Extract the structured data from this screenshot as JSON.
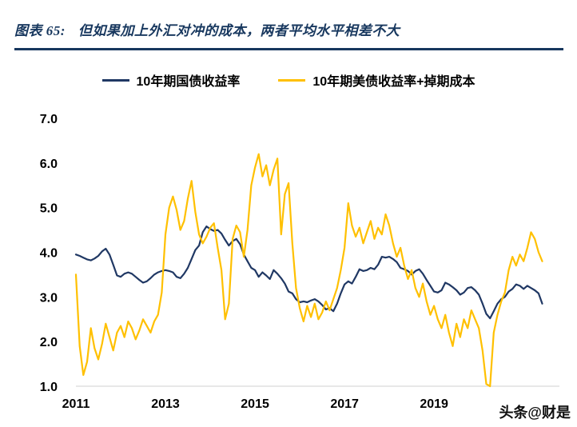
{
  "header": {
    "label": "图表 65:",
    "title": "但如果加上外汇对冲的成本，两者平均水平相差不大",
    "accent_color": "#17375E"
  },
  "watermark": "头条@财是",
  "chart_data": {
    "type": "line",
    "title": "但如果加上外汇对冲的成本，两者平均水平相差不大",
    "xlabel": "",
    "ylabel": "",
    "grid": false,
    "legend_position": "top",
    "x_start_year": 2011,
    "x_step_months": 1,
    "xlim": [
      2011,
      2021.8
    ],
    "ylim": [
      1.0,
      7.0
    ],
    "yticks": [
      {
        "label": "7.0",
        "value": 7.0
      },
      {
        "label": "6.0",
        "value": 6.0
      },
      {
        "label": "5.0",
        "value": 5.0
      },
      {
        "label": "4.0",
        "value": 4.0
      },
      {
        "label": "3.0",
        "value": 3.0
      },
      {
        "label": "2.0",
        "value": 2.0
      },
      {
        "label": "1.0",
        "value": 1.0
      }
    ],
    "xticks": [
      {
        "label": "2011",
        "value": 2011
      },
      {
        "label": "2013",
        "value": 2013
      },
      {
        "label": "2015",
        "value": 2015
      },
      {
        "label": "2017",
        "value": 2017
      },
      {
        "label": "2019",
        "value": 2019
      }
    ],
    "series": [
      {
        "name": "10年期国债收益率",
        "color": "#203864",
        "values": [
          3.95,
          3.92,
          3.88,
          3.84,
          3.82,
          3.86,
          3.92,
          4.02,
          4.08,
          3.95,
          3.72,
          3.48,
          3.45,
          3.52,
          3.55,
          3.52,
          3.45,
          3.38,
          3.32,
          3.35,
          3.42,
          3.5,
          3.55,
          3.58,
          3.6,
          3.58,
          3.55,
          3.45,
          3.42,
          3.52,
          3.65,
          3.85,
          4.05,
          4.15,
          4.45,
          4.58,
          4.52,
          4.48,
          4.5,
          4.42,
          4.28,
          4.15,
          4.25,
          4.3,
          4.18,
          3.95,
          3.8,
          3.65,
          3.6,
          3.45,
          3.55,
          3.48,
          3.4,
          3.6,
          3.52,
          3.42,
          3.3,
          3.12,
          3.08,
          2.95,
          2.88,
          2.9,
          2.88,
          2.92,
          2.95,
          2.9,
          2.82,
          2.72,
          2.75,
          2.68,
          2.85,
          3.08,
          3.28,
          3.35,
          3.3,
          3.45,
          3.62,
          3.58,
          3.6,
          3.65,
          3.62,
          3.72,
          3.9,
          3.88,
          3.9,
          3.85,
          3.78,
          3.65,
          3.62,
          3.58,
          3.5,
          3.58,
          3.62,
          3.52,
          3.38,
          3.25,
          3.12,
          3.1,
          3.15,
          3.32,
          3.28,
          3.22,
          3.15,
          3.05,
          3.1,
          3.2,
          3.22,
          3.15,
          3.05,
          2.85,
          2.62,
          2.52,
          2.68,
          2.85,
          2.95,
          3.0,
          3.12,
          3.18,
          3.28,
          3.25,
          3.18,
          3.25,
          3.2,
          3.15,
          3.08,
          2.85
        ]
      },
      {
        "name": "10年期美债收益率+掉期成本",
        "color": "#FFC000",
        "values": [
          3.5,
          1.9,
          1.25,
          1.55,
          2.3,
          1.85,
          1.6,
          1.95,
          2.4,
          2.1,
          1.8,
          2.2,
          2.35,
          2.1,
          2.45,
          2.3,
          2.05,
          2.25,
          2.5,
          2.35,
          2.2,
          2.45,
          2.6,
          3.1,
          4.4,
          5.0,
          5.25,
          4.95,
          4.5,
          4.7,
          5.2,
          5.6,
          4.9,
          4.4,
          4.2,
          4.35,
          4.55,
          4.65,
          4.1,
          3.6,
          2.5,
          2.85,
          4.3,
          4.6,
          4.45,
          3.9,
          4.5,
          5.5,
          5.9,
          6.2,
          5.7,
          5.95,
          5.5,
          5.85,
          6.1,
          4.4,
          5.3,
          5.55,
          4.2,
          3.2,
          2.75,
          2.45,
          2.8,
          2.55,
          2.85,
          2.5,
          2.65,
          2.9,
          2.7,
          2.95,
          3.2,
          3.6,
          4.1,
          5.1,
          4.6,
          4.35,
          4.55,
          4.2,
          4.45,
          4.7,
          4.3,
          4.55,
          4.4,
          4.85,
          4.6,
          4.2,
          3.9,
          4.1,
          3.7,
          3.4,
          3.6,
          3.2,
          3.0,
          3.3,
          2.9,
          2.6,
          2.8,
          2.5,
          2.3,
          2.6,
          2.2,
          1.9,
          2.4,
          2.1,
          2.5,
          2.3,
          2.7,
          2.5,
          2.3,
          1.8,
          1.05,
          1.0,
          2.2,
          2.6,
          2.9,
          3.1,
          3.6,
          3.9,
          3.7,
          3.95,
          3.8,
          4.1,
          4.45,
          4.3,
          4.0,
          3.8
        ]
      }
    ]
  }
}
